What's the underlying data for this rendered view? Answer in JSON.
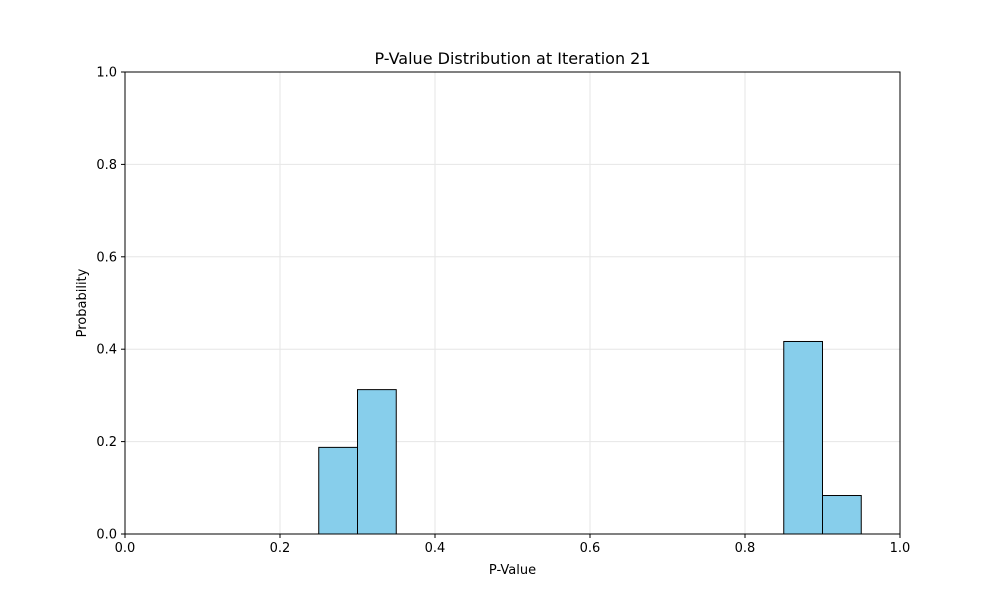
{
  "chart_data": {
    "type": "bar",
    "title": "P-Value Distribution at Iteration 21",
    "xlabel": "P-Value",
    "ylabel": "Probability",
    "xlim": [
      0.0,
      1.0
    ],
    "ylim": [
      0.0,
      1.0
    ],
    "x_ticks": [
      "0.0",
      "0.2",
      "0.4",
      "0.6",
      "0.8",
      "1.0"
    ],
    "y_ticks": [
      "0.0",
      "0.2",
      "0.4",
      "0.6",
      "0.8",
      "1.0"
    ],
    "grid": true,
    "legend": "none",
    "bars": [
      {
        "x0": 0.25,
        "x1": 0.3,
        "value": 0.1875
      },
      {
        "x0": 0.3,
        "x1": 0.35,
        "value": 0.3125
      },
      {
        "x0": 0.85,
        "x1": 0.9,
        "value": 0.4167
      },
      {
        "x0": 0.9,
        "x1": 0.95,
        "value": 0.0833
      }
    ],
    "colors": {
      "bar_fill": "#87CEEB",
      "bar_edge": "#000000",
      "grid": "#e6e6e6",
      "axis": "#000000"
    }
  }
}
